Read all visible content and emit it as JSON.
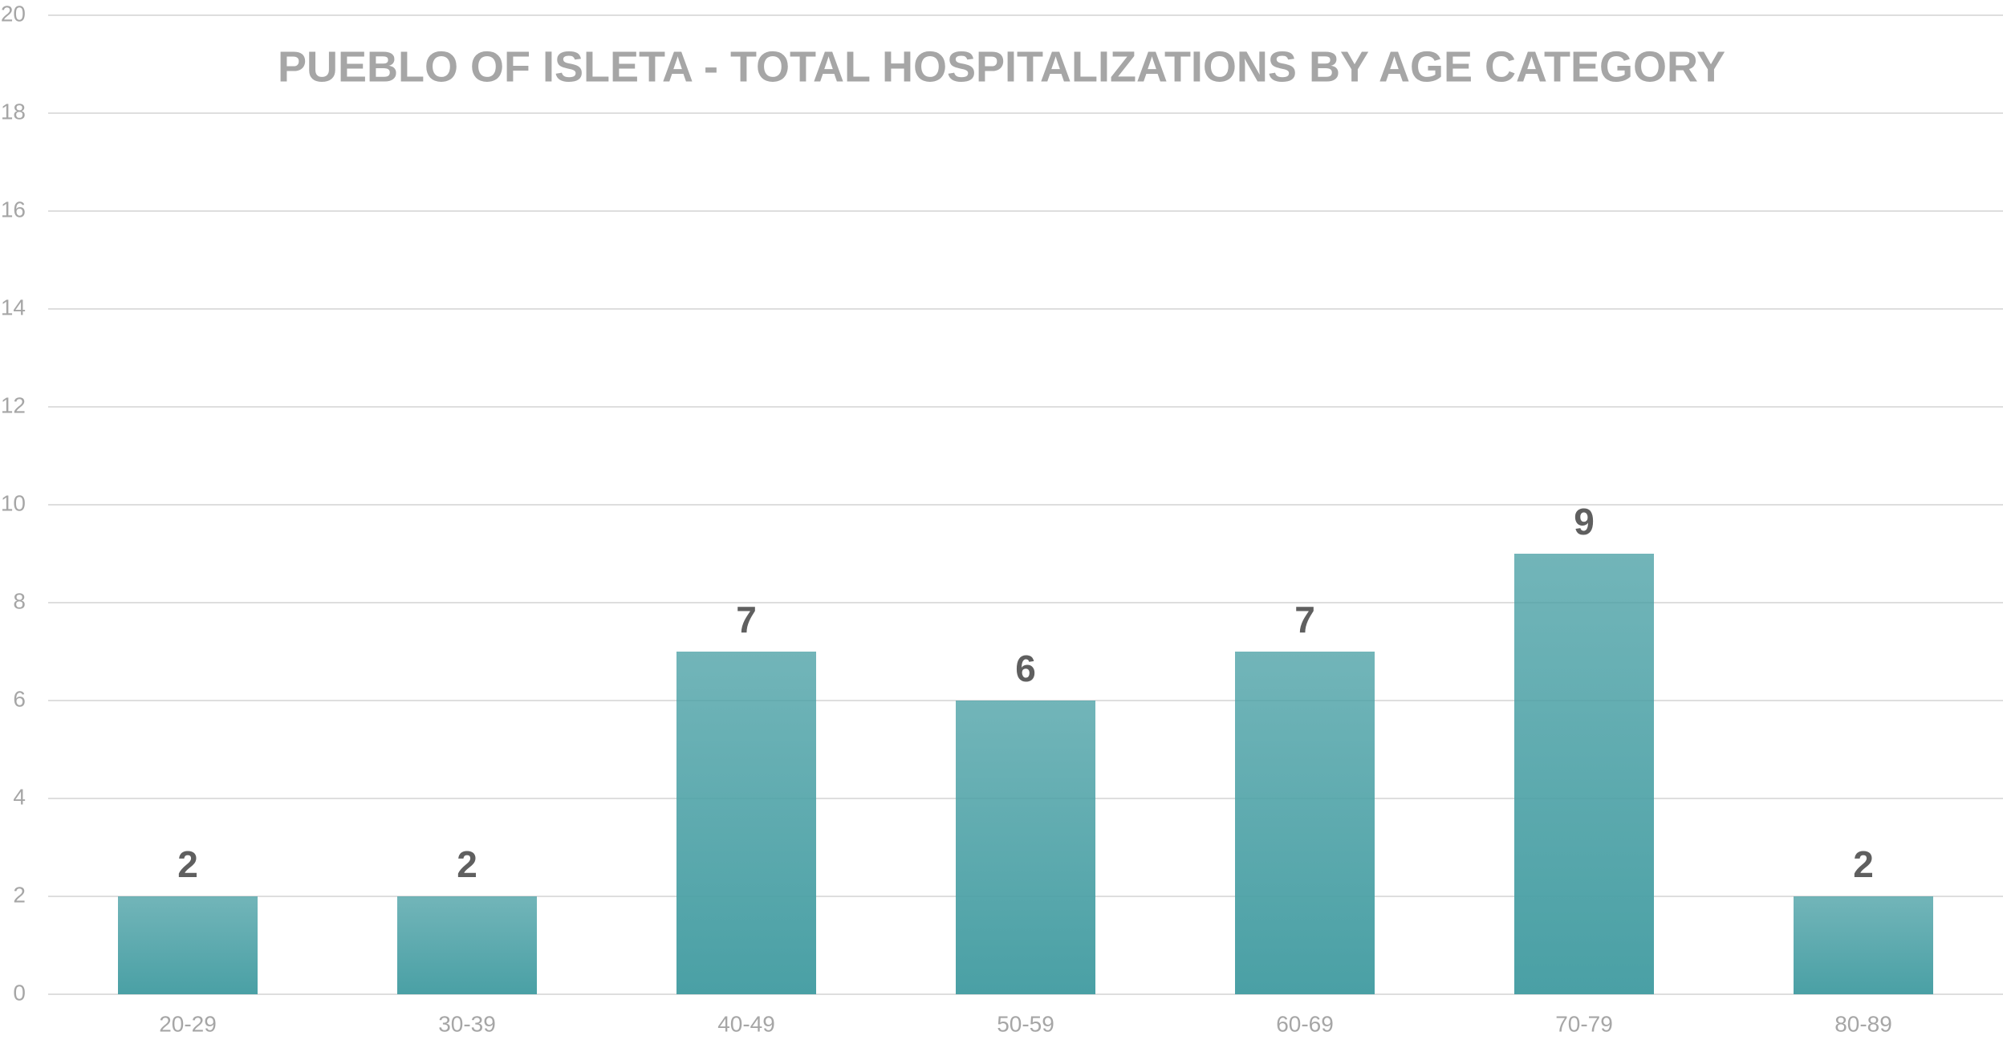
{
  "chart_data": {
    "type": "bar",
    "title": "PUEBLO OF ISLETA - TOTAL HOSPITALIZATIONS BY AGE CATEGORY",
    "categories": [
      "20-29",
      "30-39",
      "40-49",
      "50-59",
      "60-69",
      "70-79",
      "80-89"
    ],
    "values": [
      2,
      2,
      7,
      6,
      7,
      9,
      2
    ],
    "color": "#4aa0a5",
    "ylim": [
      0,
      20
    ],
    "yticks": [
      0,
      2,
      4,
      6,
      8,
      10,
      12,
      14,
      16,
      18,
      20
    ],
    "grid": true
  }
}
